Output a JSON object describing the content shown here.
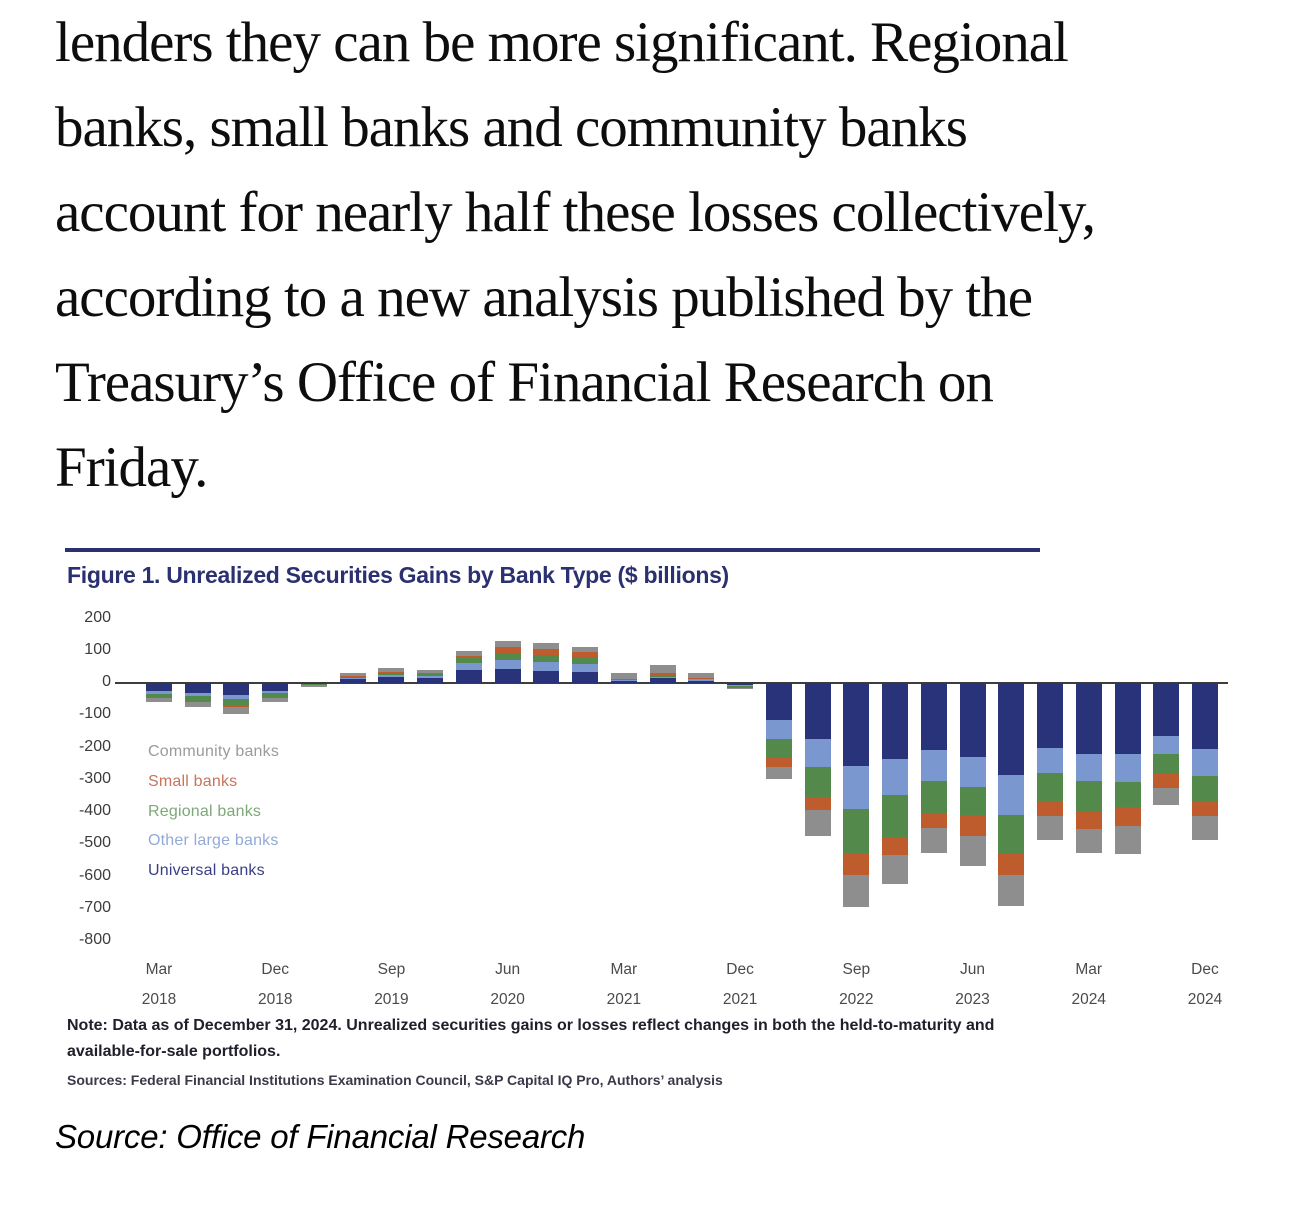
{
  "article": {
    "paragraph_lines": [
      "lenders they can be more significant. Regional",
      "banks, small banks and community banks",
      "account for nearly half these losses collectively,",
      "according to a new analysis published by the",
      "Treasury’s Office of Financial Research on",
      "Friday."
    ],
    "source_caption": "Source: Office of Financial Research"
  },
  "figure": {
    "title": "Figure 1. Unrealized Securities Gains by Bank Type ($ billions)",
    "note": "Note: Data as of December 31, 2024. Unrealized securities gains or losses reflect changes in both the held-to-maturity and available-for-sale portfolios.",
    "sources": "Sources: Federal Financial Institutions Examination Council, S&P Capital IQ Pro, Authors’ analysis"
  },
  "chart_data": {
    "type": "bar",
    "stacked": true,
    "title": "Figure 1. Unrealized Securities Gains by Bank Type ($ billions)",
    "unit": "$ billions",
    "xlabel": "",
    "ylabel": "",
    "grid": false,
    "ylim": [
      -830,
      230
    ],
    "y_ticks": [
      200,
      100,
      0,
      -100,
      -200,
      -300,
      -400,
      -500,
      -600,
      -700,
      -800
    ],
    "categories": [
      "Mar 2018",
      "Jun 2018",
      "Sep 2018",
      "Dec 2018",
      "Mar 2019",
      "Jun 2019",
      "Sep 2019",
      "Dec 2019",
      "Mar 2020",
      "Jun 2020",
      "Sep 2020",
      "Dec 2020",
      "Mar 2021",
      "Jun 2021",
      "Sep 2021",
      "Dec 2021",
      "Mar 2022",
      "Jun 2022",
      "Sep 2022",
      "Dec 2022",
      "Mar 2023",
      "Jun 2023",
      "Sep 2023",
      "Dec 2023",
      "Mar 2024",
      "Jun 2024",
      "Sep 2024",
      "Dec 2024"
    ],
    "x_tick_every": 3,
    "x_tick_labels": [
      {
        "month": "Mar",
        "year": "2018"
      },
      {
        "month": "Dec",
        "year": "2018"
      },
      {
        "month": "Sep",
        "year": "2019"
      },
      {
        "month": "Jun",
        "year": "2020"
      },
      {
        "month": "Mar",
        "year": "2021"
      },
      {
        "month": "Dec",
        "year": "2021"
      },
      {
        "month": "Sep",
        "year": "2022"
      },
      {
        "month": "Jun",
        "year": "2023"
      },
      {
        "month": "Mar",
        "year": "2024"
      },
      {
        "month": "Dec",
        "year": "2024"
      }
    ],
    "legend_position": "left-middle",
    "stack_order_from_axis": [
      "Universal banks",
      "Other large banks",
      "Regional banks",
      "Small banks",
      "Community banks"
    ],
    "series": [
      {
        "name": "Community banks",
        "color": "#8e8e8e",
        "legend_text_color": "#9b9b9b",
        "values": [
          -12,
          -15,
          -21,
          -12,
          -6,
          7,
          14,
          10,
          15,
          19,
          18,
          16,
          18,
          23,
          16,
          -1,
          -40,
          -78,
          -100,
          -91,
          -78,
          -94,
          -96,
          -76,
          -73,
          -88,
          -52,
          -75
        ]
      },
      {
        "name": "Small banks",
        "color": "#bf5c2d",
        "legend_text_color": "#c8745a",
        "values": [
          -3,
          -4,
          -5,
          -2,
          -1,
          2,
          3,
          3,
          8,
          17,
          19,
          16,
          1,
          6,
          2,
          -2,
          -26,
          -43,
          -70,
          -56,
          -47,
          -63,
          -66,
          -46,
          -57,
          -57,
          -42,
          -42
        ]
      },
      {
        "name": "Regional banks",
        "color": "#538a4c",
        "legend_text_color": "#7da877",
        "values": [
          -11,
          -16,
          -19,
          -13,
          -2,
          4,
          7,
          6,
          16,
          24,
          21,
          21,
          2,
          6,
          3,
          -7,
          -58,
          -91,
          -136,
          -131,
          -98,
          -88,
          -120,
          -86,
          -94,
          -78,
          -63,
          -82
        ]
      },
      {
        "name": "Other large banks",
        "color": "#7b97cf",
        "legend_text_color": "#93a9d8",
        "values": [
          -9,
          -10,
          -12,
          -7,
          -1,
          3,
          5,
          7,
          21,
          28,
          29,
          26,
          4,
          5,
          4,
          -2,
          -60,
          -86,
          -134,
          -109,
          -96,
          -94,
          -125,
          -80,
          -83,
          -88,
          -57,
          -83
        ]
      },
      {
        "name": "Universal banks",
        "color": "#293379",
        "legend_text_color": "#3a3f84",
        "values": [
          -25,
          -30,
          -38,
          -24,
          -2,
          14,
          19,
          14,
          40,
          42,
          37,
          34,
          5,
          15,
          7,
          -6,
          -115,
          -175,
          -256,
          -237,
          -208,
          -228,
          -285,
          -200,
          -220,
          -220,
          -163,
          -205
        ]
      }
    ]
  }
}
